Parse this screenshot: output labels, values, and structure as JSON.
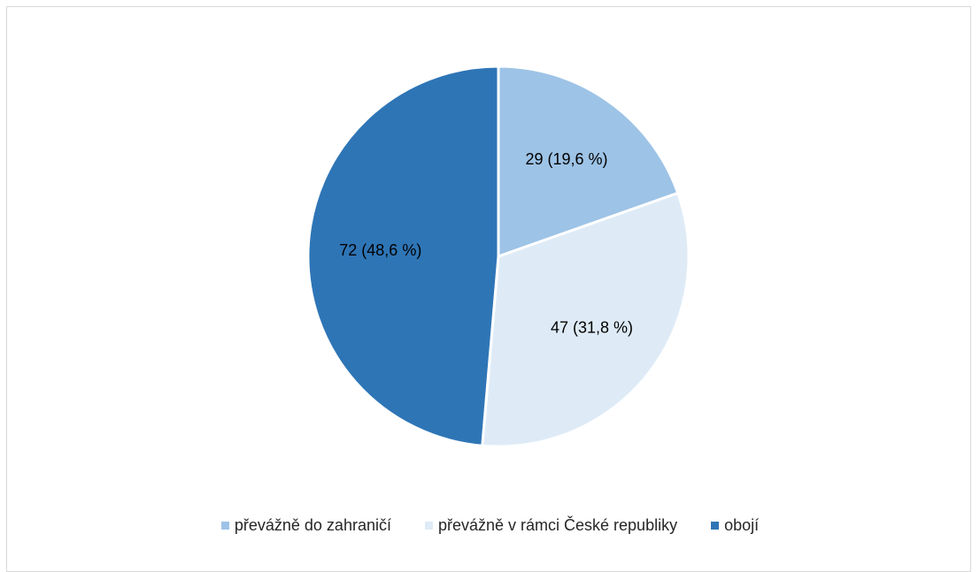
{
  "chart_data": {
    "type": "pie",
    "title": "",
    "slices": [
      {
        "name": "převážně do zahraničí",
        "value": 29,
        "label": "29 (19,6 %)",
        "color": "#9dc3e6"
      },
      {
        "name": "převážně v rámci České republiky",
        "value": 47,
        "label": "47 (31,8 %)",
        "color": "#deebf7"
      },
      {
        "name": "obojí",
        "value": 72,
        "label": "72 (48,6 %)",
        "color": "#2e75b6"
      }
    ],
    "legend_position": "bottom",
    "slice_border_color": "#ffffff"
  }
}
